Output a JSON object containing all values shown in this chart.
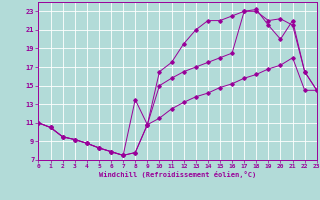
{
  "background_color": "#b2dbd8",
  "grid_color": "#ffffff",
  "line_color": "#990099",
  "xlabel": "Windchill (Refroidissement éolien,°C)",
  "xlim": [
    0,
    23
  ],
  "ylim": [
    7,
    24
  ],
  "xticks": [
    0,
    1,
    2,
    3,
    4,
    5,
    6,
    7,
    8,
    9,
    10,
    11,
    12,
    13,
    14,
    15,
    16,
    17,
    18,
    19,
    20,
    21,
    22,
    23
  ],
  "yticks": [
    7,
    9,
    11,
    13,
    15,
    17,
    19,
    21,
    23
  ],
  "curve1_x": [
    0,
    1,
    2,
    3,
    4,
    5,
    6,
    7,
    8,
    9,
    10,
    11,
    12,
    13,
    14,
    15,
    16,
    17,
    18,
    19,
    20,
    21,
    22,
    23
  ],
  "curve1_y": [
    11,
    10.5,
    9.5,
    9.2,
    8.8,
    8.3,
    7.9,
    7.5,
    7.8,
    10.8,
    11.5,
    12.5,
    13.2,
    13.8,
    14.2,
    14.8,
    15.2,
    15.8,
    16.2,
    16.8,
    17.2,
    18.0,
    14.5,
    14.5
  ],
  "curve2_x": [
    0,
    1,
    2,
    3,
    4,
    5,
    6,
    7,
    8,
    9,
    10,
    11,
    12,
    13,
    14,
    15,
    16,
    17,
    18,
    19,
    20,
    21,
    22,
    23
  ],
  "curve2_y": [
    11,
    10.5,
    9.5,
    9.2,
    8.8,
    8.3,
    7.9,
    7.5,
    7.8,
    10.8,
    16.5,
    17.5,
    19.5,
    21.0,
    22.0,
    22.0,
    22.5,
    23.0,
    23.2,
    21.5,
    20.0,
    22.0,
    16.5,
    14.5
  ],
  "curve3_x": [
    0,
    1,
    2,
    3,
    4,
    5,
    6,
    7,
    8,
    9,
    10,
    11,
    12,
    13,
    14,
    15,
    16,
    17,
    18,
    19,
    20,
    21,
    22,
    23
  ],
  "curve3_y": [
    11,
    10.5,
    9.5,
    9.2,
    8.8,
    8.3,
    7.9,
    7.5,
    13.5,
    10.8,
    15.0,
    15.8,
    16.5,
    17.0,
    17.5,
    18.0,
    18.5,
    23.0,
    23.0,
    22.0,
    22.2,
    21.5,
    16.5,
    14.5
  ]
}
